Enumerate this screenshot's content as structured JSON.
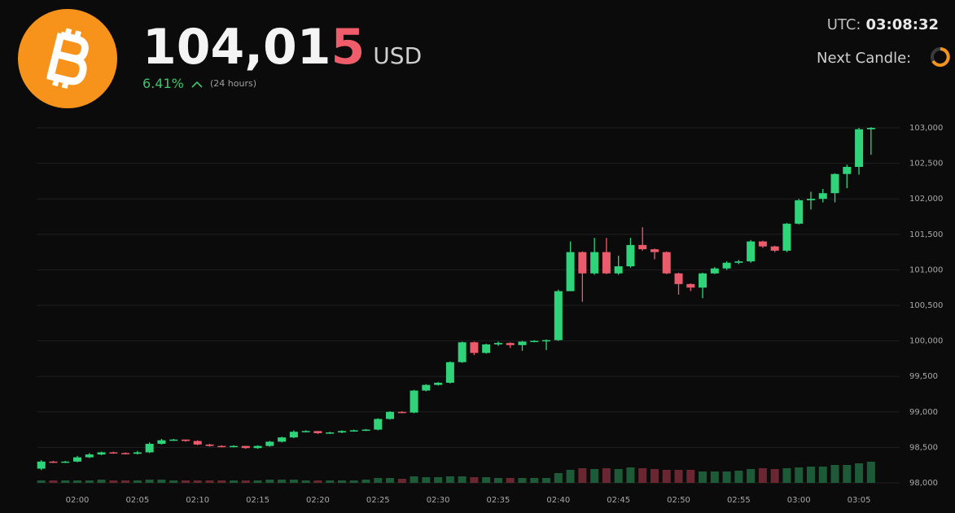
{
  "header": {
    "price_main": "104,01",
    "price_last": "5",
    "currency": "USD",
    "change": "6.41%",
    "change_period": "(24 hours)",
    "utc_label": "UTC:",
    "utc_time": "03:08:32",
    "next_candle": "Next Candle:"
  },
  "chart_data": {
    "type": "candlestick",
    "categories": [
      null,
      null,
      null,
      "02:00",
      null,
      null,
      null,
      null,
      "02:05",
      null,
      null,
      null,
      null,
      "02:10",
      null,
      null,
      null,
      null,
      "02:15",
      null,
      null,
      null,
      null,
      "02:20",
      null,
      null,
      null,
      null,
      "02:25",
      null,
      null,
      null,
      null,
      "02:30",
      null,
      null,
      null,
      null,
      "02:35",
      null,
      null,
      null,
      null,
      "02:40",
      null,
      null,
      null,
      null,
      "02:45",
      null,
      null,
      null,
      null,
      "02:50",
      null,
      null,
      null,
      null,
      "02:55",
      null,
      null,
      null,
      null,
      "03:00",
      null,
      null,
      null,
      null,
      "03:05",
      null
    ],
    "open": [
      98200,
      98300,
      98290,
      98300,
      98360,
      98400,
      98430,
      98420,
      98410,
      98430,
      98550,
      98600,
      98610,
      98590,
      98540,
      98520,
      98510,
      98520,
      98490,
      98520,
      98580,
      98640,
      98720,
      98730,
      98700,
      98710,
      98730,
      98740,
      98750,
      98900,
      99000,
      98990,
      99300,
      99380,
      99410,
      99700,
      99980,
      99830,
      99950,
      99970,
      99940,
      99990,
      100000,
      100010,
      100700,
      101250,
      100950,
      101250,
      100950,
      101050,
      101350,
      101290,
      101250,
      100950,
      100800,
      100750,
      100950,
      101020,
      101100,
      101120,
      101400,
      101330,
      101270,
      101650,
      101980,
      102000,
      102080,
      102350,
      102450,
      102980
    ],
    "high": [
      98320,
      98310,
      98310,
      98380,
      98420,
      98440,
      98440,
      98430,
      98450,
      98570,
      98620,
      98620,
      98610,
      98600,
      98550,
      98530,
      98530,
      98520,
      98530,
      98590,
      98650,
      98740,
      98740,
      98730,
      98720,
      98740,
      98750,
      98760,
      98910,
      99010,
      99010,
      99310,
      99390,
      99420,
      99710,
      99990,
      99990,
      99960,
      99990,
      99980,
      100000,
      100010,
      100020,
      100720,
      101400,
      101260,
      101450,
      101450,
      101200,
      101450,
      101600,
      101300,
      101260,
      100960,
      100810,
      100960,
      101040,
      101120,
      101140,
      101420,
      101410,
      101340,
      101660,
      102000,
      102100,
      102140,
      102360,
      102480,
      103000,
      103010
    ],
    "low": [
      98180,
      98280,
      98280,
      98290,
      98350,
      98390,
      98410,
      98400,
      98400,
      98420,
      98540,
      98590,
      98580,
      98530,
      98510,
      98500,
      98500,
      98480,
      98480,
      98510,
      98570,
      98630,
      98710,
      98690,
      98690,
      98700,
      98720,
      98730,
      98740,
      98890,
      98980,
      98980,
      99290,
      99370,
      99400,
      99690,
      99800,
      99820,
      99930,
      99900,
      99860,
      99980,
      99870,
      100000,
      100700,
      100550,
      100930,
      100940,
      100930,
      101030,
      101270,
      101150,
      100940,
      100650,
      100700,
      100600,
      100940,
      101000,
      101080,
      101100,
      101310,
      101250,
      101250,
      101640,
      101850,
      101950,
      101950,
      102150,
      102340,
      102620
    ],
    "close": [
      98300,
      98290,
      98300,
      98360,
      98400,
      98430,
      98420,
      98410,
      98430,
      98550,
      98600,
      98610,
      98590,
      98540,
      98520,
      98510,
      98520,
      98490,
      98520,
      98580,
      98640,
      98720,
      98730,
      98700,
      98710,
      98730,
      98740,
      98750,
      98900,
      99000,
      98990,
      99300,
      99380,
      99410,
      99700,
      99980,
      99830,
      99950,
      99970,
      99940,
      99990,
      100000,
      100010,
      100700,
      101250,
      100950,
      101250,
      100950,
      101050,
      101350,
      101290,
      101250,
      100950,
      100800,
      100750,
      100950,
      101020,
      101100,
      101120,
      101400,
      101330,
      101270,
      101650,
      101980,
      102000,
      102080,
      102350,
      102450,
      102980,
      103000
    ],
    "volumes": [
      3,
      3,
      3,
      3,
      3,
      4,
      3,
      3,
      3,
      4,
      4,
      3,
      3,
      3,
      3,
      3,
      3,
      3,
      3,
      4,
      4,
      4,
      3,
      3,
      3,
      3,
      3,
      4,
      6,
      6,
      5,
      8,
      7,
      7,
      8,
      8,
      7,
      7,
      6,
      6,
      6,
      6,
      6,
      12,
      16,
      18,
      17,
      18,
      17,
      19,
      18,
      17,
      16,
      16,
      16,
      14,
      14,
      14,
      15,
      17,
      18,
      17,
      18,
      19,
      20,
      20,
      22,
      22,
      24,
      26
    ],
    "up_color": "#2fd47a",
    "down_color": "#ec5b6c",
    "volume_up_color": "#1d5a37",
    "volume_down_color": "#6a2731",
    "ylim": [
      98000,
      103000
    ],
    "yticks": [
      {
        "value": 98000,
        "label": "98,000"
      },
      {
        "value": 98500,
        "label": "98,500"
      },
      {
        "value": 99000,
        "label": "99,000"
      },
      {
        "value": 99500,
        "label": "99,500"
      },
      {
        "value": 100000,
        "label": "100,000"
      },
      {
        "value": 100500,
        "label": "100,500"
      },
      {
        "value": 101000,
        "label": "101,000"
      },
      {
        "value": 101500,
        "label": "101,500"
      },
      {
        "value": 102000,
        "label": "102,000"
      },
      {
        "value": 102500,
        "label": "102,500"
      },
      {
        "value": 103000,
        "label": "103,000"
      }
    ],
    "grid": true
  }
}
